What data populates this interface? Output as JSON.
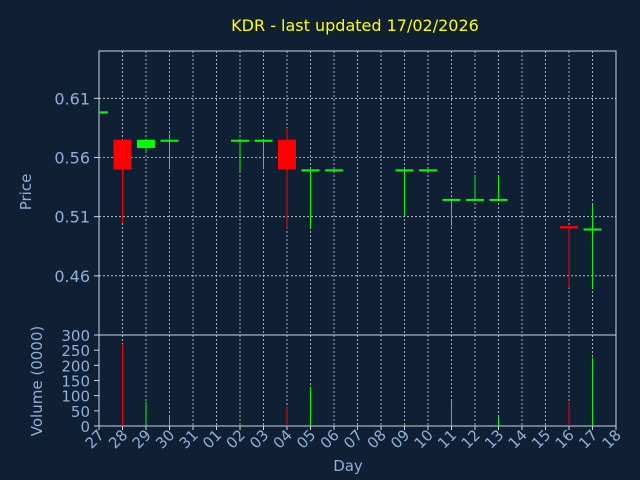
{
  "chart_data": {
    "type": "candlestick",
    "title": "KDR - last updated 17/02/2026",
    "xlabel": "Day",
    "ylabel": "Price",
    "volume_ylabel": "Volume (0000)",
    "x_tick_labels": [
      "27",
      "28",
      "29",
      "30",
      "31",
      "01",
      "02",
      "03",
      "04",
      "05",
      "06",
      "07",
      "08",
      "09",
      "10",
      "11",
      "12",
      "13",
      "14",
      "15",
      "16",
      "17",
      "18"
    ],
    "price_ylim": [
      0.41,
      0.65
    ],
    "price_ticks": [
      0.46,
      0.51,
      0.56,
      0.61
    ],
    "volume_ylim": [
      0,
      300
    ],
    "volume_ticks": [
      0,
      50,
      100,
      150,
      200,
      250,
      300
    ],
    "grid": true,
    "colors": {
      "background": "#0f2034",
      "frame": "#c8d4e0",
      "grid": "#c8d4e0",
      "axis_text": "#8fb0d6",
      "title": "#ffff00",
      "up": "#00ff00",
      "down": "#ff0000"
    },
    "candles": [
      {
        "day": "27",
        "open": 0.599,
        "high": 0.599,
        "low": 0.599,
        "close": 0.599,
        "dir": "up",
        "volume": 0
      },
      {
        "day": "28",
        "open": 0.575,
        "high": 0.575,
        "low": 0.505,
        "close": 0.55,
        "dir": "down",
        "volume": 270
      },
      {
        "day": "29",
        "open": 0.568,
        "high": 0.575,
        "low": 0.565,
        "close": 0.575,
        "dir": "up",
        "volume": 80
      },
      {
        "day": "30",
        "open": 0.575,
        "high": 0.58,
        "low": 0.55,
        "close": 0.575,
        "dir": "up",
        "volume": 35
      },
      {
        "day": "02",
        "open": 0.575,
        "high": 0.575,
        "low": 0.548,
        "close": 0.575,
        "dir": "up",
        "volume": 10
      },
      {
        "day": "03",
        "open": 0.575,
        "high": 0.575,
        "low": 0.55,
        "close": 0.575,
        "dir": "up",
        "volume": 5
      },
      {
        "day": "04",
        "open": 0.575,
        "high": 0.585,
        "low": 0.5,
        "close": 0.55,
        "dir": "down",
        "volume": 65
      },
      {
        "day": "05",
        "open": 0.55,
        "high": 0.55,
        "low": 0.5,
        "close": 0.55,
        "dir": "up",
        "volume": 130
      },
      {
        "day": "06",
        "open": 0.55,
        "high": 0.55,
        "low": 0.55,
        "close": 0.55,
        "dir": "up",
        "volume": 5
      },
      {
        "day": "09",
        "open": 0.55,
        "high": 0.55,
        "low": 0.511,
        "close": 0.55,
        "dir": "up",
        "volume": 5
      },
      {
        "day": "10",
        "open": 0.55,
        "high": 0.55,
        "low": 0.55,
        "close": 0.55,
        "dir": "up",
        "volume": 5
      },
      {
        "day": "11",
        "open": 0.525,
        "high": 0.525,
        "low": 0.502,
        "close": 0.525,
        "dir": "up",
        "volume": 85
      },
      {
        "day": "12",
        "open": 0.525,
        "high": 0.545,
        "low": 0.525,
        "close": 0.525,
        "dir": "up",
        "volume": 5
      },
      {
        "day": "13",
        "open": 0.525,
        "high": 0.544,
        "low": 0.525,
        "close": 0.525,
        "dir": "up",
        "volume": 30
      },
      {
        "day": "16",
        "open": 0.502,
        "high": 0.502,
        "low": 0.45,
        "close": 0.5,
        "dir": "down",
        "volume": 80
      },
      {
        "day": "17",
        "open": 0.5,
        "high": 0.52,
        "low": 0.449,
        "close": 0.5,
        "dir": "up",
        "volume": 225
      }
    ]
  }
}
